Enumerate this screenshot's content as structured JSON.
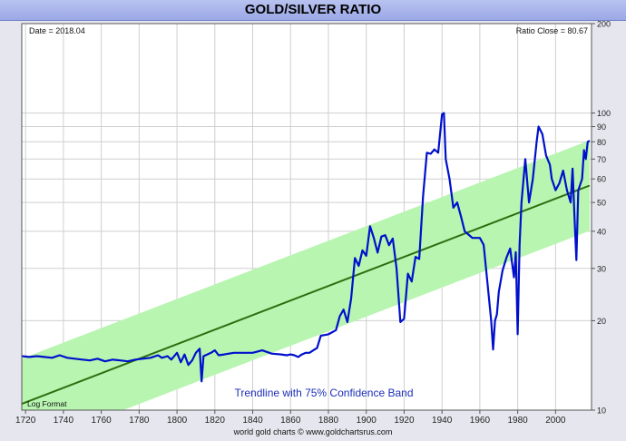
{
  "chart_data": {
    "type": "line",
    "title": "GOLD/SILVER RATIO",
    "date_label": "Date = 2018.04",
    "ratio_label": "Ratio Close = 80.67",
    "scale": "log",
    "ylim": [
      10,
      200
    ],
    "xlim": [
      1718,
      2019
    ],
    "x_ticks": [
      "1720",
      "1740",
      "1760",
      "1780",
      "1800",
      "1820",
      "1840",
      "1860",
      "1880",
      "1900",
      "1920",
      "1940",
      "1960",
      "1980",
      "2000"
    ],
    "y_ticks": [
      "10",
      "20",
      "30",
      "40",
      "50",
      "60",
      "70",
      "80",
      "90",
      "100",
      "200"
    ],
    "band_label": "Trendline with 75% Confidence Band",
    "log_label": "Log Format",
    "footer": "world gold charts © www.goldchartsrus.com",
    "trend": {
      "x": [
        1718,
        2018
      ],
      "y": [
        10.5,
        57
      ]
    },
    "band_factor": 1.42,
    "grid": true,
    "colors": {
      "series": "#0010cc",
      "trend": "#2e6e10",
      "band": "#b8f5b0",
      "plot_bg": "#ffffff",
      "grid": "#cfcfcf"
    },
    "series": [
      {
        "x": [
          1718,
          1722,
          1726,
          1730,
          1734,
          1738,
          1742,
          1746,
          1750,
          1754,
          1758,
          1762,
          1766,
          1770,
          1774,
          1778,
          1782,
          1786,
          1790,
          1792,
          1795,
          1797,
          1800,
          1802,
          1804,
          1806,
          1808,
          1810,
          1812,
          1813,
          1814,
          1816,
          1818,
          1820,
          1822,
          1825,
          1830,
          1835,
          1840,
          1845,
          1850,
          1855,
          1858,
          1860,
          1862,
          1864,
          1866,
          1868,
          1870,
          1872,
          1874,
          1876,
          1878,
          1880,
          1882,
          1884,
          1886,
          1888,
          1890,
          1892,
          1894,
          1896,
          1898,
          1900,
          1902,
          1904,
          1906,
          1908,
          1910,
          1912,
          1914,
          1916,
          1918,
          1920,
          1922,
          1924,
          1926,
          1928,
          1930,
          1932,
          1934,
          1936,
          1938,
          1940,
          1941,
          1942,
          1944,
          1946,
          1948,
          1950,
          1952,
          1954,
          1956,
          1958,
          1960,
          1962,
          1964,
          1966,
          1967,
          1968,
          1969,
          1970,
          1972,
          1974,
          1976,
          1978,
          1979,
          1980,
          1981,
          1982,
          1984,
          1986,
          1988,
          1990,
          1991,
          1993,
          1995,
          1997,
          1998,
          2000,
          2002,
          2004,
          2006,
          2008,
          2009,
          2010,
          2011,
          2012,
          2014,
          2015,
          2016,
          2017,
          2018
        ],
        "y": [
          15.2,
          15.1,
          15.2,
          15.1,
          15.0,
          15.3,
          15.0,
          14.9,
          14.8,
          14.7,
          14.9,
          14.6,
          14.8,
          14.7,
          14.6,
          14.8,
          14.9,
          15.0,
          15.3,
          15.0,
          15.2,
          14.8,
          15.6,
          14.5,
          15.4,
          14.2,
          14.7,
          15.6,
          16.1,
          12.5,
          15.2,
          15.4,
          15.6,
          15.9,
          15.3,
          15.4,
          15.6,
          15.6,
          15.6,
          15.9,
          15.5,
          15.4,
          15.3,
          15.4,
          15.3,
          15.1,
          15.4,
          15.6,
          15.6,
          15.9,
          16.2,
          17.8,
          17.9,
          18.0,
          18.3,
          18.6,
          20.7,
          21.8,
          19.8,
          23.7,
          32.5,
          30.6,
          34.5,
          33.1,
          41.6,
          37.9,
          33.9,
          38.4,
          38.8,
          35.9,
          37.8,
          30.0,
          19.8,
          20.3,
          28.8,
          27.1,
          32.8,
          32.3,
          52.4,
          73.5,
          72.9,
          75.4,
          73.5,
          99.0,
          100.0,
          70.0,
          60.0,
          48.0,
          50.0,
          45.0,
          40.0,
          39.0,
          38.0,
          38.0,
          38.0,
          36.0,
          27.0,
          20.0,
          16.0,
          20.0,
          21.0,
          25.0,
          29.5,
          32.5,
          35.0,
          28.0,
          34.0,
          18.0,
          36.0,
          50.0,
          70.0,
          50.0,
          60.0,
          80.0,
          90.0,
          85.0,
          72.0,
          67.0,
          60.0,
          55.0,
          58.0,
          64.0,
          55.0,
          50.0,
          65.0,
          45.0,
          32.0,
          55.0,
          60.0,
          75.0,
          70.0,
          80.0,
          80.67
        ]
      }
    ]
  }
}
